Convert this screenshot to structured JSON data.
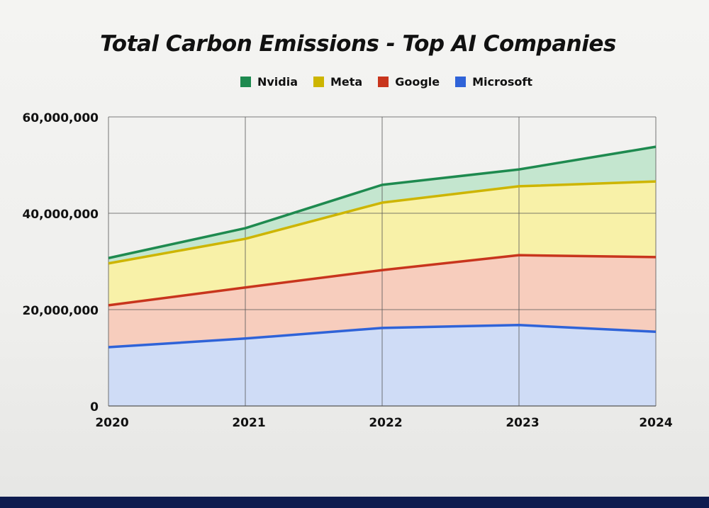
{
  "chart_data": {
    "type": "area",
    "stacked": true,
    "title": "Total Carbon Emissions - Top AI Companies",
    "xlabel": "",
    "ylabel": "",
    "categories": [
      "2020",
      "2021",
      "2022",
      "2023",
      "2024"
    ],
    "ylim": [
      0,
      60000000
    ],
    "yticks": [
      0,
      20000000,
      40000000,
      60000000
    ],
    "ytick_labels": [
      "0",
      "20,000,000",
      "40,000,000",
      "60,000,000"
    ],
    "grid": true,
    "legend": "top",
    "series": [
      {
        "name": "Microsoft",
        "color": "#2f63d8",
        "fill": "#cfdcf6",
        "values": [
          12200000,
          14000000,
          16200000,
          16800000,
          15400000
        ]
      },
      {
        "name": "Google",
        "color": "#c8351d",
        "fill": "#f7cdbd",
        "values": [
          8700000,
          10600000,
          12000000,
          14500000,
          15500000
        ]
      },
      {
        "name": "Meta",
        "color": "#cdb500",
        "fill": "#f8f1a8",
        "values": [
          8700000,
          10100000,
          14000000,
          14300000,
          15700000
        ]
      },
      {
        "name": "Nvidia",
        "color": "#1e8a4f",
        "fill": "#c4e6cf",
        "values": [
          1100000,
          2200000,
          3700000,
          3500000,
          7200000
        ]
      }
    ],
    "legend_order": [
      "Nvidia",
      "Meta",
      "Google",
      "Microsoft"
    ]
  }
}
